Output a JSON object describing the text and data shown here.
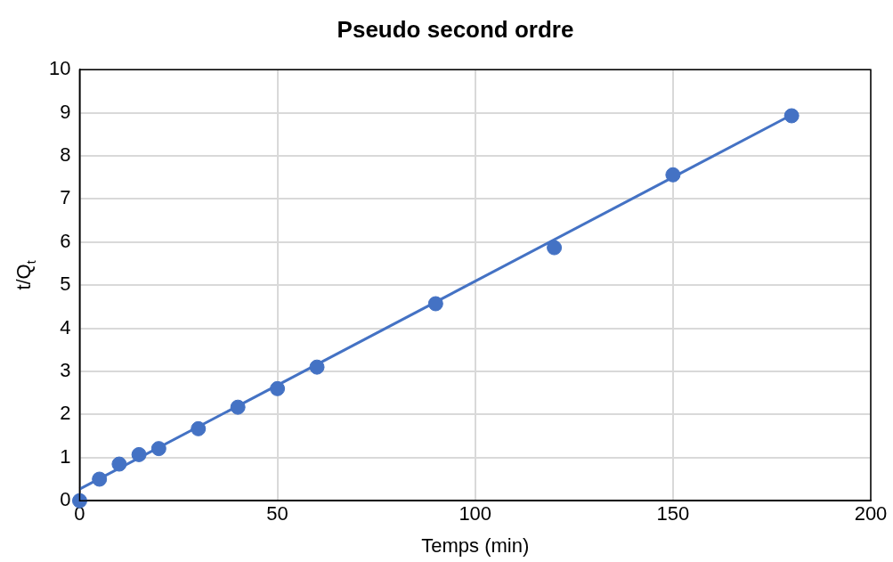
{
  "chart_data": {
    "type": "scatter",
    "title": "Pseudo second ordre",
    "xlabel": "Temps (min)",
    "ylabel": "t/Q$_{t}$",
    "xlim": [
      0,
      200
    ],
    "xticks": [
      0,
      50,
      100,
      150,
      200
    ],
    "ylim": [
      0,
      10
    ],
    "yticks": [
      0,
      1,
      2,
      3,
      4,
      5,
      6,
      7,
      8,
      9,
      10
    ],
    "grid": true,
    "legend": false,
    "marker": "circle",
    "series": [
      {
        "type": "scatter",
        "color": "#4472c4",
        "x": [
          0,
          5,
          10,
          15,
          20,
          30,
          40,
          50,
          60,
          90,
          120,
          150,
          180
        ],
        "values": [
          0.0,
          0.5,
          0.85,
          1.07,
          1.21,
          1.67,
          2.17,
          2.6,
          3.1,
          4.57,
          5.87,
          7.56,
          8.93
        ]
      },
      {
        "type": "line",
        "color": "#4472c4",
        "marker": "none",
        "x": [
          0,
          180
        ],
        "values": [
          0.27,
          8.95
        ]
      }
    ]
  }
}
